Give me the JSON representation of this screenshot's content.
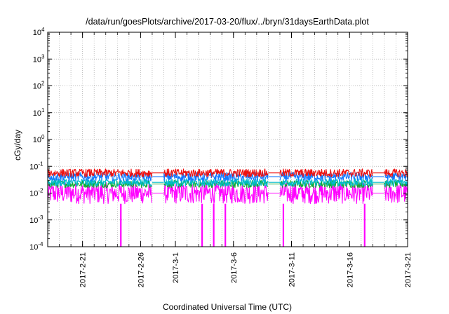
{
  "chart_data": {
    "type": "line",
    "title": "/data/run/goesPlots/archive/2017-03-20/flux/../bryn/31daysEarthData.plot",
    "xlabel": "Coordinated Universal Time (UTC)",
    "ylabel": "cGy/day",
    "x_range": [
      "2017-02-18",
      "2017-03-21"
    ],
    "ylim": [
      0.0001,
      10000
    ],
    "yscale": "log",
    "grid": true,
    "x_ticks": [
      "2017-2-21",
      "2017-2-26",
      "2017-3-1",
      "2017-3-6",
      "2017-3-11",
      "2017-3-16",
      "2017-3-21"
    ],
    "y_ticks": [
      {
        "base": "10",
        "exp": "-4"
      },
      {
        "base": "10",
        "exp": "-3"
      },
      {
        "base": "10",
        "exp": "-2"
      },
      {
        "base": "10",
        "exp": "-1"
      },
      {
        "base": "10",
        "exp": "0"
      },
      {
        "base": "10",
        "exp": "1"
      },
      {
        "base": "10",
        "exp": "2"
      },
      {
        "base": "10",
        "exp": "3"
      },
      {
        "base": "10",
        "exp": "4"
      }
    ],
    "data_segments": [
      [
        "2017-02-18",
        "2017-02-27"
      ],
      [
        "2017-02-28",
        "2017-03-09"
      ],
      [
        "2017-03-10",
        "2017-03-18"
      ],
      [
        "2017-03-19",
        "2017-03-21"
      ]
    ],
    "series": [
      {
        "color": "#ee1111",
        "low": 0.04,
        "high": 0.08
      },
      {
        "color": "#1177ff",
        "low": 0.028,
        "high": 0.06
      },
      {
        "color": "#00bbcc",
        "low": 0.018,
        "high": 0.035
      },
      {
        "color": "#11aa33",
        "low": 0.016,
        "high": 0.03
      },
      {
        "color": "#ff00ff",
        "low": 0.004,
        "high": 0.025
      }
    ],
    "drop_events": [
      "2017-02-24",
      "2017-03-03",
      "2017-03-04",
      "2017-03-05",
      "2017-03-10",
      "2017-03-17"
    ]
  }
}
